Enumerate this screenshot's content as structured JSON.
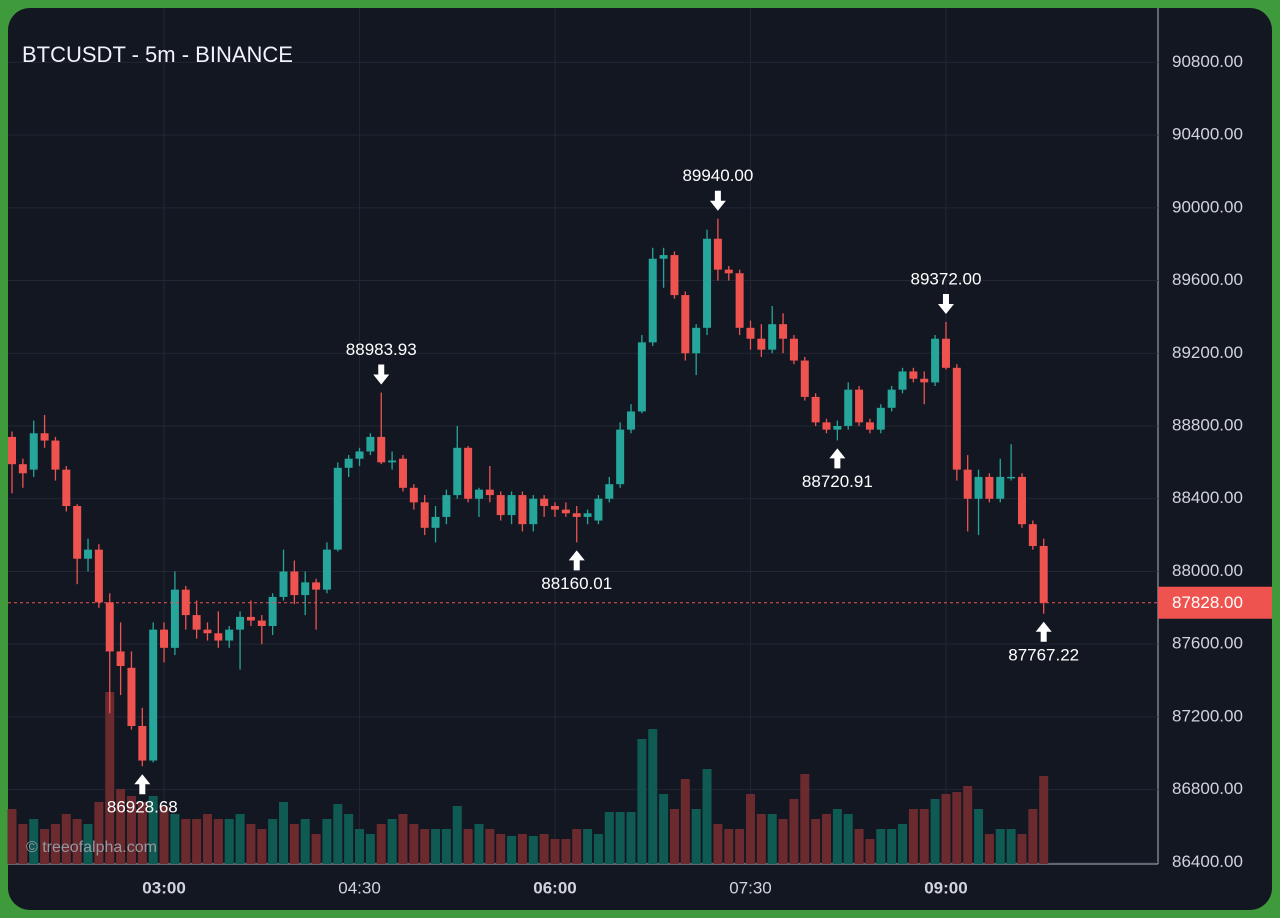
{
  "chart_data": {
    "type": "candlestick",
    "title": "BTCUSDT - 5m - BINANCE",
    "watermark": "© treeofalpha.com",
    "x": [
      "01:50",
      "01:55",
      "02:00",
      "02:05",
      "02:10",
      "02:15",
      "02:20",
      "02:25",
      "02:30",
      "02:35",
      "02:40",
      "02:45",
      "02:50",
      "02:55",
      "03:00",
      "03:05",
      "03:10",
      "03:15",
      "03:20",
      "03:25",
      "03:30",
      "03:35",
      "03:40",
      "03:45",
      "03:50",
      "03:55",
      "04:00",
      "04:05",
      "04:10",
      "04:15",
      "04:20",
      "04:25",
      "04:30",
      "04:35",
      "04:40",
      "04:45",
      "04:50",
      "04:55",
      "05:00",
      "05:05",
      "05:10",
      "05:15",
      "05:20",
      "05:25",
      "05:30",
      "05:35",
      "05:40",
      "05:45",
      "05:50",
      "05:55",
      "06:00",
      "06:05",
      "06:10",
      "06:15",
      "06:20",
      "06:25",
      "06:30",
      "06:35",
      "06:40",
      "06:45",
      "06:50",
      "06:55",
      "07:00",
      "07:05",
      "07:10",
      "07:15",
      "07:20",
      "07:25",
      "07:30",
      "07:35",
      "07:40",
      "07:45",
      "07:50",
      "07:55",
      "08:00",
      "08:05",
      "08:10",
      "08:15",
      "08:20",
      "08:25",
      "08:30",
      "08:35",
      "08:40",
      "08:45",
      "08:50",
      "08:55",
      "09:00",
      "09:05",
      "09:10",
      "09:15",
      "09:20",
      "09:25",
      "09:30",
      "09:35",
      "09:40",
      "09:45"
    ],
    "open": [
      88740,
      88590,
      88560,
      88760,
      88720,
      88560,
      88360,
      88070,
      88120,
      87830,
      87560,
      87470,
      87150,
      86960,
      87680,
      87580,
      87900,
      87760,
      87680,
      87660,
      87620,
      87680,
      87750,
      87730,
      87700,
      87860,
      88000,
      87870,
      87940,
      87900,
      88120,
      88570,
      88620,
      88660,
      88740,
      88600,
      88620,
      88460,
      88380,
      88240,
      88300,
      88420,
      88680,
      88400,
      88450,
      88420,
      88310,
      88420,
      88260,
      88400,
      88360,
      88340,
      88320,
      88300,
      88280,
      88400,
      88480,
      88780,
      88880,
      89260,
      89720,
      89740,
      89520,
      89200,
      89340,
      89830,
      89660,
      89640,
      89340,
      89280,
      89220,
      89360,
      89280,
      89160,
      88960,
      88820,
      88780,
      88800,
      89000,
      88820,
      88780,
      88900,
      89000,
      89100,
      89060,
      89040,
      89280,
      89120,
      88560,
      88400,
      88520,
      88400,
      88520,
      88520,
      88260,
      88140
    ],
    "high": [
      88770,
      88620,
      88830,
      88860,
      88740,
      88580,
      88370,
      88180,
      88150,
      87880,
      87720,
      87560,
      87250,
      87720,
      87720,
      88000,
      87920,
      87840,
      87720,
      87780,
      87700,
      87780,
      87840,
      87760,
      87880,
      88120,
      88060,
      88000,
      87960,
      88160,
      88600,
      88640,
      88680,
      88760,
      88983.93,
      88660,
      88640,
      88480,
      88420,
      88360,
      88450,
      88800,
      88690,
      88460,
      88580,
      88440,
      88440,
      88440,
      88420,
      88420,
      88380,
      88380,
      88360,
      88340,
      88420,
      88520,
      88820,
      88920,
      89300,
      89780,
      89780,
      89760,
      89540,
      89360,
      89880,
      89940,
      89680,
      89660,
      89380,
      89360,
      89460,
      89420,
      89300,
      89180,
      88980,
      88840,
      88830,
      89040,
      89020,
      88840,
      88920,
      89020,
      89120,
      89120,
      89100,
      89300,
      89372,
      89140,
      88640,
      88560,
      88540,
      88620,
      88700,
      88540,
      88280,
      88180
    ],
    "low": [
      88430,
      88460,
      88520,
      88680,
      88500,
      88330,
      87930,
      88000,
      87800,
      87220,
      87320,
      87130,
      86928.68,
      86950,
      87500,
      87540,
      87680,
      87630,
      87620,
      87580,
      87580,
      87460,
      87700,
      87600,
      87650,
      87840,
      87820,
      87760,
      87680,
      87880,
      88110,
      88520,
      88580,
      88640,
      88590,
      88560,
      88440,
      88340,
      88200,
      88160,
      88260,
      88400,
      88380,
      88300,
      88380,
      88280,
      88260,
      88220,
      88220,
      88300,
      88300,
      88300,
      88160.01,
      88260,
      88260,
      88380,
      88460,
      88760,
      88870,
      89240,
      89560,
      89500,
      89160,
      89080,
      89300,
      89600,
      89600,
      89300,
      89220,
      89180,
      89200,
      89200,
      89140,
      88940,
      88800,
      88760,
      88720.91,
      88780,
      88800,
      88760,
      88760,
      88880,
      88980,
      89040,
      88920,
      89020,
      89110,
      88500,
      88220,
      88200,
      88380,
      88380,
      88500,
      88240,
      88120,
      87767.22
    ],
    "close": [
      88590,
      88540,
      88760,
      88720,
      88560,
      88360,
      88070,
      88120,
      87830,
      87560,
      87480,
      87150,
      86960,
      87680,
      87580,
      87900,
      87760,
      87680,
      87660,
      87620,
      87680,
      87750,
      87730,
      87700,
      87860,
      88000,
      87870,
      87940,
      87900,
      88120,
      88570,
      88620,
      88660,
      88740,
      88600,
      88610,
      88460,
      88380,
      88240,
      88300,
      88420,
      88680,
      88400,
      88450,
      88420,
      88310,
      88420,
      88260,
      88400,
      88360,
      88340,
      88320,
      88300,
      88320,
      88400,
      88480,
      88780,
      88880,
      89260,
      89720,
      89740,
      89520,
      89200,
      89340,
      89830,
      89660,
      89640,
      89340,
      89280,
      89220,
      89360,
      89280,
      89160,
      88960,
      88820,
      88780,
      88800,
      89000,
      88820,
      88780,
      88900,
      89000,
      89100,
      89060,
      89040,
      89280,
      89120,
      88560,
      88400,
      88520,
      88400,
      88520,
      88520,
      88260,
      88140,
      87828
    ],
    "volume": [
      55,
      40,
      45,
      35,
      40,
      50,
      45,
      40,
      62,
      172,
      75,
      68,
      62,
      68,
      58,
      50,
      45,
      45,
      50,
      45,
      45,
      50,
      40,
      35,
      45,
      62,
      40,
      45,
      30,
      45,
      60,
      50,
      35,
      30,
      40,
      45,
      50,
      40,
      35,
      35,
      35,
      58,
      35,
      40,
      35,
      30,
      28,
      30,
      28,
      30,
      25,
      25,
      35,
      35,
      30,
      52,
      52,
      52,
      125,
      135,
      70,
      55,
      85,
      55,
      95,
      40,
      35,
      35,
      70,
      50,
      50,
      45,
      65,
      90,
      45,
      50,
      55,
      50,
      35,
      25,
      35,
      35,
      40,
      55,
      55,
      65,
      70,
      72,
      78,
      55,
      30,
      35,
      35,
      30,
      55,
      88
    ],
    "up_color": "#26a69a",
    "down_color": "#ef5350",
    "up_volume_color": "#0f5b53",
    "down_volume_color": "#6b2a2e",
    "ylim": [
      86160,
      91000
    ],
    "yticks": [
      {
        "value": 86400,
        "label": "86400.00"
      },
      {
        "value": 86800,
        "label": "86800.00"
      },
      {
        "value": 87200,
        "label": "87200.00"
      },
      {
        "value": 87600,
        "label": "87600.00"
      },
      {
        "value": 88000,
        "label": "88000.00"
      },
      {
        "value": 88400,
        "label": "88400.00"
      },
      {
        "value": 88800,
        "label": "88800.00"
      },
      {
        "value": 89200,
        "label": "89200.00"
      },
      {
        "value": 89600,
        "label": "89600.00"
      },
      {
        "value": 90000,
        "label": "90000.00"
      },
      {
        "value": 90400,
        "label": "90400.00"
      },
      {
        "value": 90800,
        "label": "90800.00"
      }
    ],
    "xticks": [
      "03:00",
      "04:30",
      "06:00",
      "07:30",
      "09:00"
    ],
    "last_price": {
      "value": 87828,
      "label": "87828.00"
    },
    "annotations": [
      {
        "value": 86928.68,
        "label": "86928.68"
      },
      {
        "value": 88983.93,
        "label": "88983.93"
      },
      {
        "value": 88160.01,
        "label": "88160.01"
      },
      {
        "value": 89940,
        "label": "89940.00"
      },
      {
        "value": 88720.91,
        "label": "88720.91"
      },
      {
        "value": 89372,
        "label": "89372.00"
      },
      {
        "value": 87767.22,
        "label": "87767.22"
      }
    ],
    "grid": true
  }
}
